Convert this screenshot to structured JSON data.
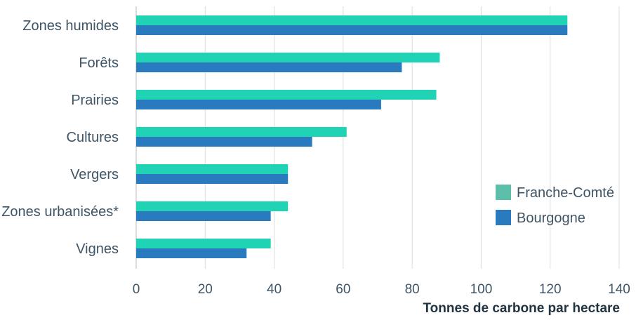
{
  "chart_data": {
    "type": "bar",
    "orientation": "horizontal",
    "categories": [
      "Zones humides",
      "Forêts",
      "Prairies",
      "Cultures",
      "Vergers",
      "Zones urbanisées*",
      "Vignes"
    ],
    "series": [
      {
        "name": "Franche-Comté",
        "color": "#20d3b4",
        "legend_color": "#5bbfaa",
        "values": [
          125,
          88,
          87,
          61,
          44,
          44,
          39
        ]
      },
      {
        "name": "Bourgogne",
        "color": "#2a7ac0",
        "legend_color": "#2a7ac0",
        "values": [
          125,
          77,
          71,
          51,
          44,
          39,
          32
        ]
      }
    ],
    "xlim": [
      0,
      140
    ],
    "xticks": [
      0,
      20,
      40,
      60,
      80,
      100,
      120,
      140
    ],
    "tick_labels": [
      "0",
      "20",
      "40",
      "60",
      "80",
      "100",
      "120",
      "140"
    ],
    "xlabel": "Tonnes de carbone par hectare",
    "ylabel": "",
    "grid": true,
    "legend_position": "right"
  }
}
